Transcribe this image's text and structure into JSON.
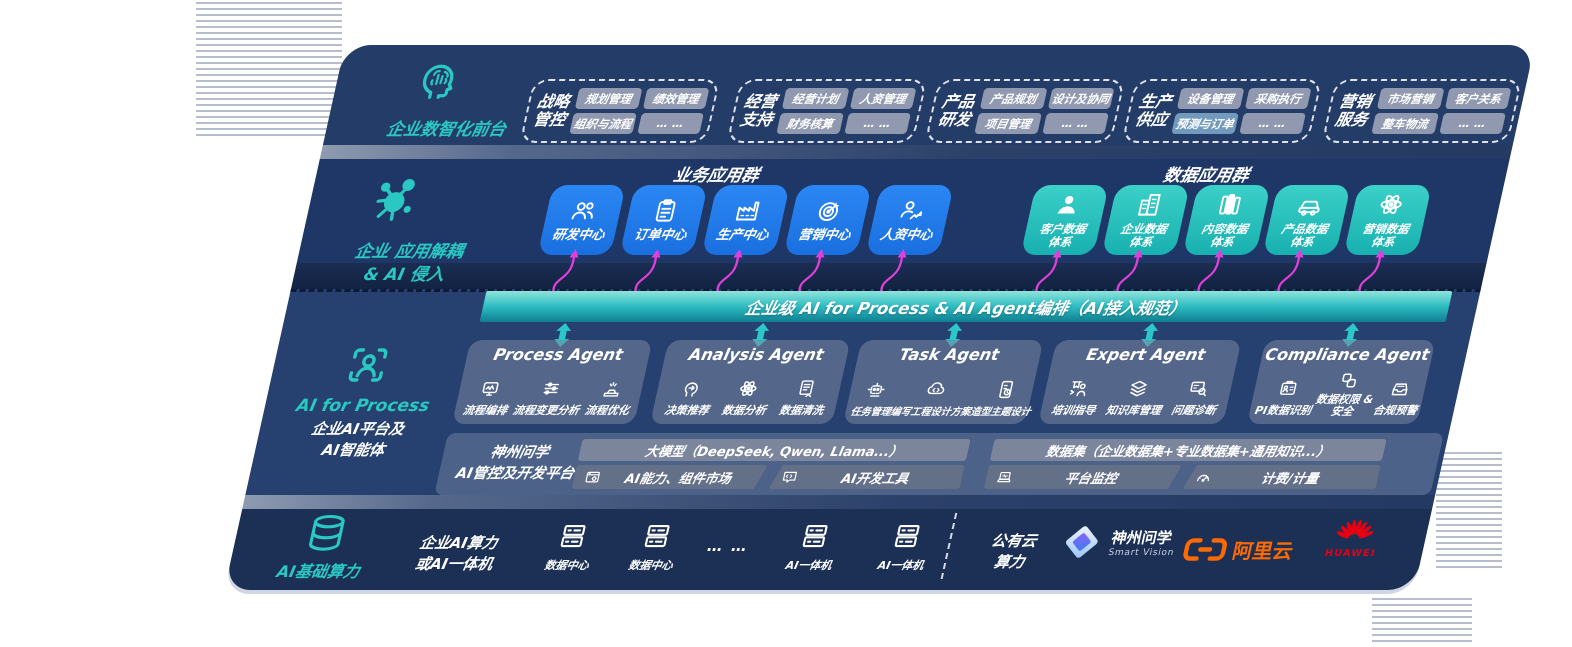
{
  "colors": {
    "panel_navy": "#1F3A66",
    "accent_teal": "#2BC7C3",
    "accent_blue": "#1E7CF0",
    "magenta": "#E13FD9",
    "bar_teal_top": "#8FE3DA",
    "bar_teal_bottom": "#0F7F90",
    "aliyun_orange": "#FF6A00",
    "huawei_red": "#E60012"
  },
  "layers": {
    "front_office_label": "企业数智化前台",
    "front_office_icon": "brain-head-icon",
    "decouple_label_1": "企业 应用解耦",
    "decouple_label_2": "& AI 侵入",
    "decouple_icon": "molecule-icon",
    "ai_layer_en": "AI for Process",
    "ai_layer_zh1": "企业AI平台及",
    "ai_layer_zh2": "AI智能体",
    "ai_layer_icon": "scan-person-icon",
    "infra_label": "AI基础算力",
    "infra_icon": "database-icon"
  },
  "front_office": {
    "groups": [
      {
        "line1": "战略",
        "line2": "管控",
        "tags": [
          "规划管理",
          "绩效管理",
          "组织与流程",
          "… …"
        ]
      },
      {
        "line1": "经营",
        "line2": "支持",
        "tags": [
          "经营计划",
          "人资管理",
          "财务核算",
          "… …"
        ]
      },
      {
        "line1": "产品",
        "line2": "研发",
        "tags": [
          "产品规划",
          "设计及协同",
          "项目管理",
          "… …"
        ]
      },
      {
        "line1": "生产",
        "line2": "供应",
        "tags": [
          "设备管理",
          "采购执行",
          "预测与订单",
          "… …"
        ]
      },
      {
        "line1": "营销",
        "line2": "服务",
        "tags": [
          "市场营销",
          "客户关系",
          "整车物流",
          "… …"
        ]
      }
    ]
  },
  "business_apps": {
    "title": "业务应用群",
    "items": [
      {
        "label": "研发中心",
        "icon": "team-icon"
      },
      {
        "label": "订单中心",
        "icon": "clipboard-icon"
      },
      {
        "label": "生产中心",
        "icon": "factory-icon"
      },
      {
        "label": "营销中心",
        "icon": "target-icon"
      },
      {
        "label": "人资中心",
        "icon": "hr-people-icon"
      }
    ]
  },
  "data_apps": {
    "title": "数据应用群",
    "items": [
      {
        "line1": "客户数据",
        "line2": "体系",
        "icon": "person-icon"
      },
      {
        "line1": "企业数据",
        "line2": "体系",
        "icon": "building-icon"
      },
      {
        "line1": "内容数据",
        "line2": "体系",
        "icon": "content-icon"
      },
      {
        "line1": "产品数据",
        "line2": "体系",
        "icon": "car-icon"
      },
      {
        "line1": "营销数据",
        "line2": "体系",
        "icon": "atom-icon"
      }
    ]
  },
  "orchestration_bar": "企业级 AI for Process & AI Agent编排（AI接入规范）",
  "agents": [
    {
      "title": "Process Agent",
      "items": [
        {
          "label": "流程编排",
          "icon": "flow-monitor-icon"
        },
        {
          "label": "流程变更分析",
          "icon": "sliders-icon"
        },
        {
          "label": "流程优化",
          "icon": "optimize-icon"
        }
      ]
    },
    {
      "title": "Analysis Agent",
      "items": [
        {
          "label": "决策推荐",
          "icon": "decision-head-icon"
        },
        {
          "label": "数据分析",
          "icon": "atom-icon"
        },
        {
          "label": "数据清洗",
          "icon": "doc-clean-icon"
        }
      ]
    },
    {
      "title": "Task Agent",
      "items": [
        {
          "label": "任务管理",
          "icon": "robot-icon"
        },
        {
          "label": "编写工程设计方案",
          "icon": "cloud-code-icon"
        },
        {
          "label": "造型主题设计",
          "icon": "design-doc-icon"
        }
      ]
    },
    {
      "title": "Expert Agent",
      "items": [
        {
          "label": "培训指导",
          "icon": "training-icon"
        },
        {
          "label": "知识库管理",
          "icon": "layers-icon"
        },
        {
          "label": "问题诊断",
          "icon": "diagnose-icon"
        }
      ]
    },
    {
      "title": "Compliance Agent",
      "items": [
        {
          "label": "PI数据识别",
          "icon": "id-card-icon"
        },
        {
          "label": "数据权限 & 安全",
          "icon": "linked-squares-icon"
        },
        {
          "label": "合规预警",
          "icon": "inbox-alert-icon"
        }
      ]
    }
  ],
  "platform": {
    "label_1": "神州问学",
    "label_2": "AI管控及开发平台",
    "model_bar": "大模型（DeepSeek, Qwen, Llama...）",
    "dataset_bar": "数据集（企业数据集+专业数据集+通用知识...）",
    "cells": [
      {
        "label": "AI能力、组件市场",
        "icon": "app-market-icon"
      },
      {
        "label": "AI开发工具",
        "icon": "dev-tools-icon"
      },
      {
        "label": "平台监控",
        "icon": "laptop-monitor-icon"
      },
      {
        "label": "计费/计量",
        "icon": "gauge-icon"
      }
    ]
  },
  "infra": {
    "compute_1": "企业AI算力",
    "compute_2": "或AI一体机",
    "nodes": [
      {
        "label": "数据中心",
        "icon": "server-icon"
      },
      {
        "label": "数据中心",
        "icon": "server-icon"
      },
      {
        "label": "AI一体机",
        "icon": "server-icon"
      },
      {
        "label": "AI一体机",
        "icon": "server-icon"
      }
    ],
    "dots": "… …",
    "cloud_1": "公有云",
    "cloud_2": "算力",
    "logos": {
      "szwx_name": "神州问学",
      "szwx_sub": "Smart Vision",
      "aliyun": "阿里云",
      "huawei": "HUAWEI"
    }
  }
}
